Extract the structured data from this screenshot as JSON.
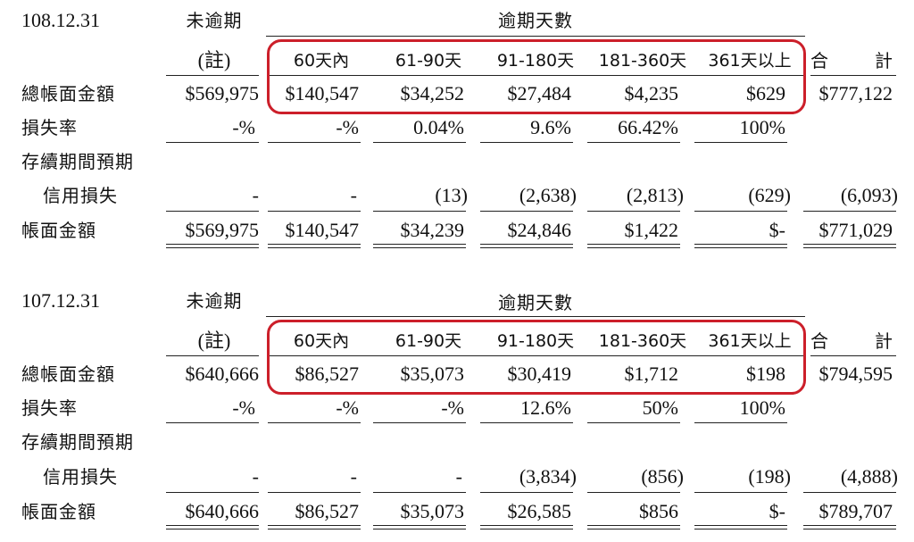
{
  "accent_color": "#cc1f2a",
  "sections": [
    {
      "date": "108.12.31",
      "not_overdue_header": "未逾期",
      "overdue_header": "逾期天數",
      "note": "(註)",
      "buckets": [
        "60天內",
        "61-90天",
        "91-180天",
        "181-360天",
        "361天以上"
      ],
      "total_header": [
        "合",
        "計"
      ],
      "rows": [
        {
          "label": "總帳面金額",
          "values": [
            "$569,975",
            "$140,547",
            "$34,252",
            "$27,484",
            "$4,235",
            "$629",
            "$777,122"
          ]
        },
        {
          "label": "損失率",
          "values": [
            "-%",
            "-%",
            "0.04%",
            "9.6%",
            "66.42%",
            "100%",
            ""
          ]
        },
        {
          "label": "存續期間預期",
          "values": [
            "",
            "",
            "",
            "",
            "",
            "",
            ""
          ]
        },
        {
          "label": "信用損失",
          "values": [
            "-",
            "-",
            "(13)",
            "(2,638)",
            "(2,813)",
            "(629)",
            "(6,093)"
          ]
        },
        {
          "label": "帳面金額",
          "values": [
            "$569,975",
            "$140,547",
            "$34,239",
            "$24,846",
            "$1,422",
            "$-",
            "$771,029"
          ]
        }
      ]
    },
    {
      "date": "107.12.31",
      "not_overdue_header": "未逾期",
      "overdue_header": "逾期天數",
      "note": "(註)",
      "buckets": [
        "60天內",
        "61-90天",
        "91-180天",
        "181-360天",
        "361天以上"
      ],
      "total_header": [
        "合",
        "計"
      ],
      "rows": [
        {
          "label": "總帳面金額",
          "values": [
            "$640,666",
            "$86,527",
            "$35,073",
            "$30,419",
            "$1,712",
            "$198",
            "$794,595"
          ]
        },
        {
          "label": "損失率",
          "values": [
            "-%",
            "-%",
            "-%",
            "12.6%",
            "50%",
            "100%",
            ""
          ]
        },
        {
          "label": "存續期間預期",
          "values": [
            "",
            "",
            "",
            "",
            "",
            "",
            ""
          ]
        },
        {
          "label": "信用損失",
          "values": [
            "-",
            "-",
            "-",
            "(3,834)",
            "(856)",
            "(198)",
            "(4,888)"
          ]
        },
        {
          "label": "帳面金額",
          "values": [
            "$640,666",
            "$86,527",
            "$35,073",
            "$26,585",
            "$856",
            "$-",
            "$789,707"
          ]
        }
      ]
    }
  ]
}
